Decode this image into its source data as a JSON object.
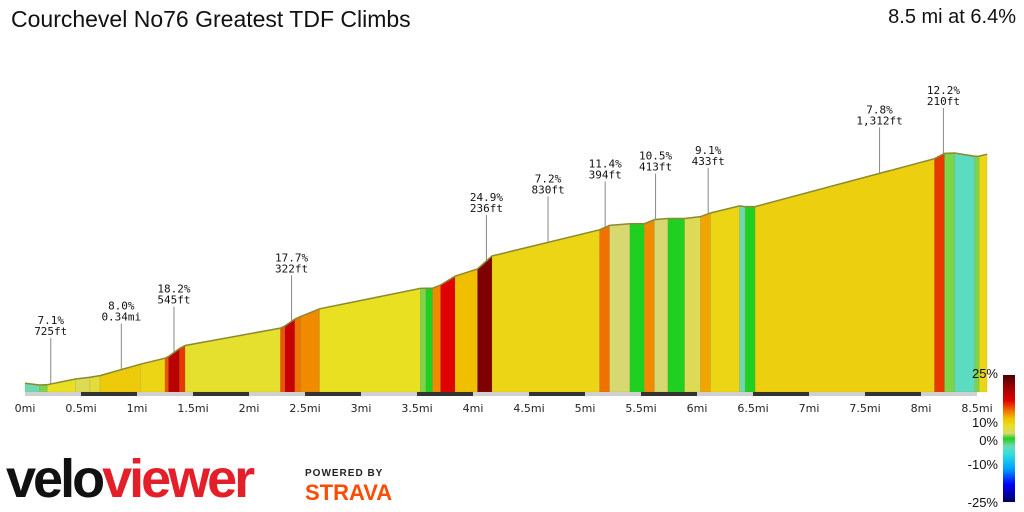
{
  "header": {
    "title": "Courchevel No76 Greatest TDF Climbs",
    "summary": "8.5 mi at 6.4%"
  },
  "branding": {
    "logo_part1": "velo",
    "logo_part2": "viewer",
    "powered_by": "POWERED BY",
    "strava": "STRAVA",
    "strava_color": "#fc4c02",
    "logo_red": "#e3202a"
  },
  "chart_data": {
    "type": "area",
    "title": "",
    "xlabel": "",
    "ylabel": "",
    "x_unit": "mi",
    "xlim": [
      0,
      8.5
    ],
    "x_ticks": [
      "0mi",
      "0.5mi",
      "1mi",
      "1.5mi",
      "2mi",
      "2.5mi",
      "3mi",
      "3.5mi",
      "4mi",
      "4.5mi",
      "5mi",
      "5.5mi",
      "6mi",
      "6.5mi",
      "7mi",
      "7.5mi",
      "8mi",
      "8.5mi"
    ],
    "segments": [
      [
        0.0,
        0.13,
        -3
      ],
      [
        0.13,
        0.2,
        1
      ],
      [
        0.2,
        0.45,
        5
      ],
      [
        0.45,
        0.58,
        3
      ],
      [
        0.58,
        0.67,
        4
      ],
      [
        0.67,
        1.03,
        7
      ],
      [
        1.03,
        1.25,
        6
      ],
      [
        1.25,
        1.28,
        12
      ],
      [
        1.28,
        1.38,
        18
      ],
      [
        1.38,
        1.43,
        13
      ],
      [
        1.43,
        2.28,
        4.5
      ],
      [
        2.28,
        2.32,
        12
      ],
      [
        2.32,
        2.41,
        17
      ],
      [
        2.41,
        2.46,
        11
      ],
      [
        2.46,
        2.63,
        10
      ],
      [
        2.63,
        3.53,
        5
      ],
      [
        3.53,
        3.58,
        1
      ],
      [
        3.58,
        3.64,
        0
      ],
      [
        3.64,
        3.71,
        10
      ],
      [
        3.71,
        3.84,
        15
      ],
      [
        3.84,
        4.04,
        8
      ],
      [
        4.04,
        4.17,
        22
      ],
      [
        4.17,
        5.13,
        6
      ],
      [
        5.13,
        5.22,
        11
      ],
      [
        5.22,
        5.4,
        2
      ],
      [
        5.4,
        5.53,
        0
      ],
      [
        5.53,
        5.62,
        10
      ],
      [
        5.62,
        5.74,
        2
      ],
      [
        5.74,
        5.89,
        0
      ],
      [
        5.89,
        6.03,
        3
      ],
      [
        6.03,
        6.12,
        9
      ],
      [
        6.12,
        6.38,
        6
      ],
      [
        6.38,
        6.43,
        -3
      ],
      [
        6.43,
        6.52,
        0
      ],
      [
        6.52,
        8.12,
        6.6
      ],
      [
        8.12,
        8.21,
        13
      ],
      [
        8.21,
        8.3,
        1
      ],
      [
        8.3,
        8.48,
        -4
      ],
      [
        8.48,
        8.52,
        1
      ],
      [
        8.52,
        8.59,
        6
      ]
    ],
    "annotations": [
      {
        "x": 0.23,
        "grade": "7.1%",
        "length": "725ft"
      },
      {
        "x": 0.86,
        "grade": "8.0%",
        "length": "0.34mi"
      },
      {
        "x": 1.33,
        "grade": "18.2%",
        "length": "545ft"
      },
      {
        "x": 2.38,
        "grade": "17.7%",
        "length": "322ft"
      },
      {
        "x": 4.12,
        "grade": "24.9%",
        "length": "236ft"
      },
      {
        "x": 4.67,
        "grade": "7.2%",
        "length": "830ft"
      },
      {
        "x": 5.18,
        "grade": "11.4%",
        "length": "394ft"
      },
      {
        "x": 5.63,
        "grade": "10.5%",
        "length": "413ft"
      },
      {
        "x": 6.1,
        "grade": "9.1%",
        "length": "433ft"
      },
      {
        "x": 7.63,
        "grade": "7.8%",
        "length": "1,312ft"
      },
      {
        "x": 8.2,
        "grade": "12.2%",
        "length": "210ft"
      }
    ],
    "legend": {
      "placement": "right",
      "ticks": [
        "25%",
        "10%",
        "0%",
        "-10%",
        "-25%"
      ],
      "tick_values": [
        25,
        10,
        0,
        -10,
        -25
      ],
      "color_stops": [
        [
          25,
          "#4a0000"
        ],
        [
          20,
          "#a00000"
        ],
        [
          15,
          "#e00000"
        ],
        [
          11,
          "#f07000"
        ],
        [
          8,
          "#f0c000"
        ],
        [
          5,
          "#e8e020"
        ],
        [
          2,
          "#d8d870"
        ],
        [
          0,
          "#20d020"
        ],
        [
          -3,
          "#70d8b0"
        ],
        [
          -6,
          "#30e0e0"
        ],
        [
          -12,
          "#00a0ff"
        ],
        [
          -18,
          "#0000ff"
        ],
        [
          -25,
          "#000060"
        ]
      ]
    }
  }
}
